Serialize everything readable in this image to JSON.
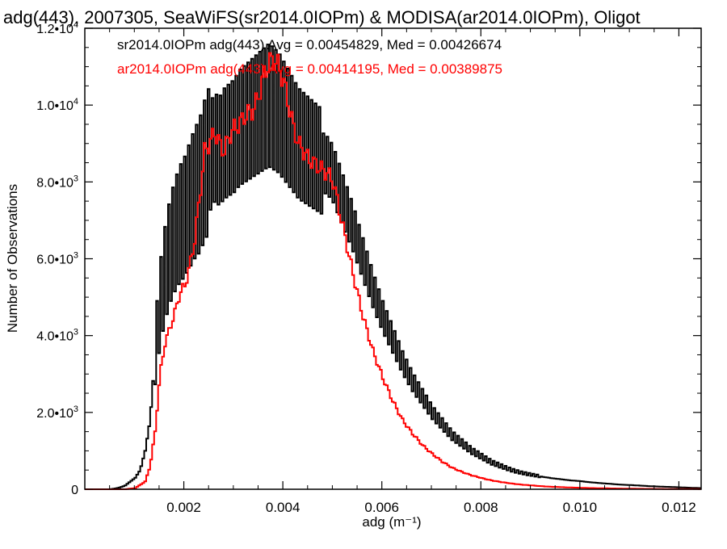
{
  "chart_data": {
    "type": "line",
    "title": "adg(443), 2007305, SeaWiFS(sr2014.0IOPm) & MODISA(ar2014.0IOPm), Oligot",
    "xlabel": "adg (m⁻¹)",
    "ylabel": "Number of Observations",
    "xlim": [
      0.0,
      0.01245
    ],
    "ylim": [
      0,
      12000
    ],
    "x_ticks": [
      0.002,
      0.004,
      0.006,
      0.008,
      0.01,
      0.012
    ],
    "x_tick_labels": [
      "0.002",
      "0.004",
      "0.006",
      "0.008",
      "0.010",
      "0.012"
    ],
    "y_ticks": [
      {
        "value": 0,
        "mant": "0",
        "exp": ""
      },
      {
        "value": 2000,
        "mant": "2.0•10",
        "exp": "3"
      },
      {
        "value": 4000,
        "mant": "4.0•10",
        "exp": "3"
      },
      {
        "value": 6000,
        "mant": "6.0•10",
        "exp": "3"
      },
      {
        "value": 8000,
        "mant": "8.0•10",
        "exp": "3"
      },
      {
        "value": 10000,
        "mant": "1.0•10",
        "exp": "4"
      },
      {
        "value": 12000,
        "mant": "1.2•10",
        "exp": "4"
      }
    ],
    "grid": false,
    "legend_position": "top-left",
    "series": [
      {
        "name": "sr2014.0IOPm",
        "annotation": "sr2014.0IOPm adg(443) Avg = 0.00454829, Med = 0.00426674",
        "color": "#000000",
        "step": "zigzag",
        "x": [
          0.0005,
          0.0006,
          0.0007,
          0.0008,
          0.0009,
          0.001,
          0.0011,
          0.0012,
          0.0013,
          0.0014,
          0.0015,
          0.0016,
          0.0017,
          0.0018,
          0.0019,
          0.002,
          0.0021,
          0.0022,
          0.0023,
          0.0024,
          0.0025,
          0.0026,
          0.0027,
          0.0028,
          0.0029,
          0.003,
          0.0031,
          0.0032,
          0.0033,
          0.0034,
          0.0035,
          0.0036,
          0.0037,
          0.0038,
          0.0039,
          0.004,
          0.0041,
          0.0042,
          0.0043,
          0.0044,
          0.0045,
          0.0046,
          0.0047,
          0.0048,
          0.0049,
          0.005,
          0.0052,
          0.0054,
          0.0056,
          0.0058,
          0.006,
          0.0062,
          0.0064,
          0.0066,
          0.0068,
          0.007,
          0.0072,
          0.0074,
          0.0076,
          0.0078,
          0.008,
          0.0082,
          0.0084,
          0.0086,
          0.0088,
          0.009,
          0.0092,
          0.0094,
          0.0096,
          0.0098,
          0.01,
          0.0102,
          0.0104,
          0.0106,
          0.0108,
          0.011,
          0.0112,
          0.0114,
          0.0116,
          0.0118,
          0.012,
          0.0122,
          0.01245
        ],
        "y": [
          0,
          20,
          50,
          100,
          200,
          300,
          500,
          1000,
          1800,
          3500,
          4800,
          5600,
          6200,
          6600,
          6900,
          7100,
          7400,
          7700,
          7900,
          8300,
          8600,
          8900,
          8800,
          9000,
          9100,
          9200,
          9400,
          9500,
          9600,
          9700,
          9800,
          9900,
          10000,
          9900,
          9800,
          9600,
          9400,
          9200,
          9000,
          8900,
          8800,
          8700,
          8600,
          8500,
          8400,
          8200,
          7500,
          6800,
          6000,
          5200,
          4500,
          3900,
          3300,
          2800,
          2400,
          2000,
          1700,
          1400,
          1200,
          1000,
          850,
          700,
          600,
          500,
          430,
          380,
          330,
          290,
          260,
          230,
          210,
          180,
          160,
          140,
          120,
          110,
          95,
          80,
          70,
          60,
          50,
          40,
          30
        ]
      },
      {
        "name": "ar2014.0IOPm",
        "annotation": "ar2014.0IOPm adg(443) Avg = 0.00414195, Med = 0.00389875",
        "color": "#ff0000",
        "step": "smooth",
        "x": [
          0.0,
          0.0008,
          0.001,
          0.0012,
          0.0013,
          0.0014,
          0.0015,
          0.0016,
          0.0017,
          0.0018,
          0.0019,
          0.002,
          0.0021,
          0.0022,
          0.0023,
          0.0024,
          0.0025,
          0.0026,
          0.0027,
          0.0028,
          0.0029,
          0.003,
          0.0031,
          0.0032,
          0.0033,
          0.0034,
          0.0035,
          0.0036,
          0.0037,
          0.0038,
          0.0039,
          0.004,
          0.0041,
          0.0042,
          0.0043,
          0.0044,
          0.0045,
          0.0046,
          0.0047,
          0.0048,
          0.0049,
          0.005,
          0.0052,
          0.0054,
          0.0056,
          0.0058,
          0.006,
          0.0062,
          0.0064,
          0.0066,
          0.0068,
          0.007,
          0.0072,
          0.0074,
          0.0076,
          0.0078,
          0.008,
          0.0082,
          0.0084,
          0.0086,
          0.0088,
          0.009,
          0.0092,
          0.0094,
          0.0096,
          0.0098,
          0.01,
          0.0102,
          0.0104,
          0.0106,
          0.0108,
          0.011,
          0.0112,
          0.0114,
          0.0116,
          0.0118,
          0.012,
          0.0122,
          0.01245
        ],
        "y": [
          0,
          0,
          30,
          200,
          600,
          1500,
          3000,
          3800,
          4200,
          4600,
          5100,
          5300,
          5800,
          6500,
          7600,
          8800,
          9000,
          9300,
          9000,
          8800,
          9200,
          9400,
          9500,
          9700,
          9800,
          9900,
          10300,
          10800,
          11100,
          11200,
          11000,
          10600,
          10000,
          9400,
          9000,
          8800,
          8600,
          8500,
          8400,
          8300,
          8200,
          8000,
          6800,
          5600,
          4500,
          3600,
          2900,
          2300,
          1800,
          1450,
          1150,
          920,
          720,
          560,
          450,
          360,
          290,
          230,
          185,
          150,
          120,
          100,
          80,
          65,
          55,
          45,
          38,
          32,
          27,
          22,
          18,
          15,
          12,
          10,
          8,
          6,
          5,
          4,
          3
        ]
      }
    ]
  }
}
